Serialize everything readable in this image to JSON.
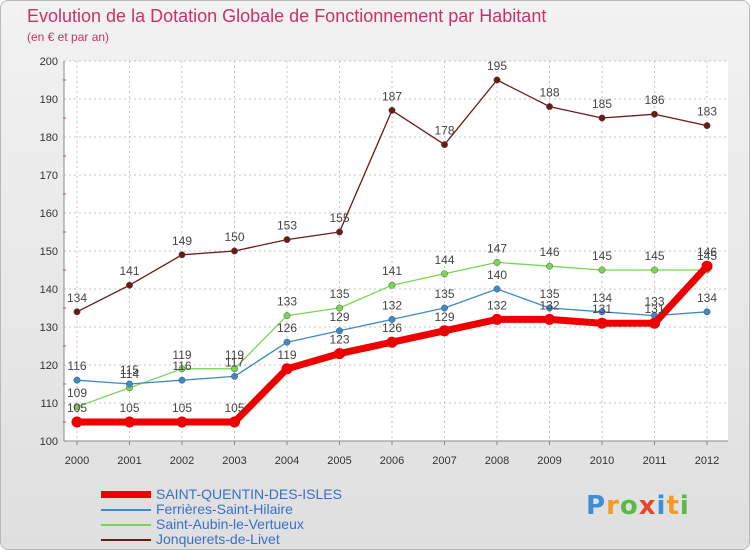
{
  "chart_data": {
    "type": "line",
    "title": "Evolution de la Dotation Globale de Fonctionnement par Habitant",
    "subtitle": "(en € et par an)",
    "xlabel": "",
    "ylabel": "",
    "x": [
      "2000",
      "2001",
      "2002",
      "2003",
      "2004",
      "2005",
      "2006",
      "2007",
      "2008",
      "2009",
      "2010",
      "2011",
      "2012"
    ],
    "ylim": [
      100,
      200
    ],
    "yticks": [
      100,
      110,
      120,
      130,
      140,
      150,
      160,
      170,
      180,
      190,
      200
    ],
    "grid": true,
    "legend_position": "bottom-left",
    "series": [
      {
        "name": "SAINT-QUENTIN-DES-ISLES",
        "color": "#ee0000",
        "values": [
          105,
          105,
          105,
          105,
          119,
          123,
          126,
          129,
          132,
          132,
          131,
          131,
          146
        ],
        "labels": [
          "105",
          "105",
          "105",
          "105",
          "119",
          "123",
          "126",
          "129",
          "132",
          "132",
          "131",
          "131",
          "146"
        ]
      },
      {
        "name": "Ferrières-Saint-Hilaire",
        "color": "#3c8ac9",
        "values": [
          116,
          115,
          116,
          117,
          126,
          129,
          132,
          135,
          140,
          135,
          134,
          133,
          134
        ],
        "labels": [
          "116",
          "115",
          "116",
          "117",
          "126",
          "129",
          "132",
          "135",
          "140",
          "135",
          "134",
          "133",
          "134"
        ]
      },
      {
        "name": "Saint-Aubin-le-Vertueux",
        "color": "#78d651",
        "values": [
          109,
          114,
          119,
          119,
          133,
          135,
          141,
          144,
          147,
          146,
          145,
          145,
          145
        ],
        "labels": [
          "109",
          "114",
          "119",
          "119",
          "133",
          "135",
          "141",
          "144",
          "147",
          "146",
          "145",
          "145",
          "145"
        ]
      },
      {
        "name": "Jonquerets-de-Livet",
        "color": "#6b1a1a",
        "values": [
          134,
          141,
          149,
          150,
          153,
          155,
          187,
          178,
          195,
          188,
          185,
          186,
          183
        ],
        "labels": [
          "134",
          "141",
          "149",
          "150",
          "153",
          "155",
          "187",
          "178",
          "195",
          "188",
          "185",
          "186",
          "183"
        ]
      }
    ]
  },
  "logo": {
    "letters": [
      {
        "char": "P",
        "color": "#3f8fd6"
      },
      {
        "char": "r",
        "color": "#f39c1f"
      },
      {
        "char": "o",
        "color": "#5cb947"
      },
      {
        "char": "x",
        "color": "#e8432d"
      },
      {
        "char": "i",
        "color": "#3f8fd6"
      },
      {
        "char": "t",
        "color": "#f39c1f"
      },
      {
        "char": "i",
        "color": "#5cb947"
      }
    ]
  },
  "colors": {
    "title": "#c8316a",
    "grid": "#c4c4c4",
    "label": "#444444"
  }
}
